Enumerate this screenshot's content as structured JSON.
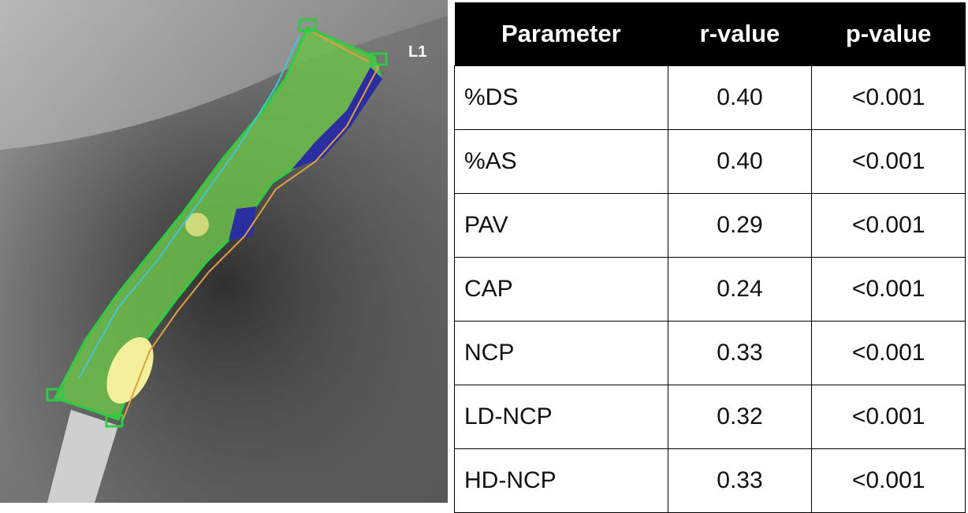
{
  "image": {
    "label": "L1"
  },
  "table": {
    "header": [
      "Parameter",
      "r-value",
      "p-value"
    ],
    "rows": [
      [
        "%DS",
        "0.40",
        "<0.001"
      ],
      [
        "%AS",
        "0.40",
        "<0.001"
      ],
      [
        "PAV",
        "0.29",
        "<0.001"
      ],
      [
        "CAP",
        "0.24",
        "<0.001"
      ],
      [
        "NCP",
        "0.33",
        "<0.001"
      ],
      [
        "LD-NCP",
        "0.32",
        "<0.001"
      ],
      [
        "HD-NCP",
        "0.33",
        "<0.001"
      ]
    ]
  }
}
